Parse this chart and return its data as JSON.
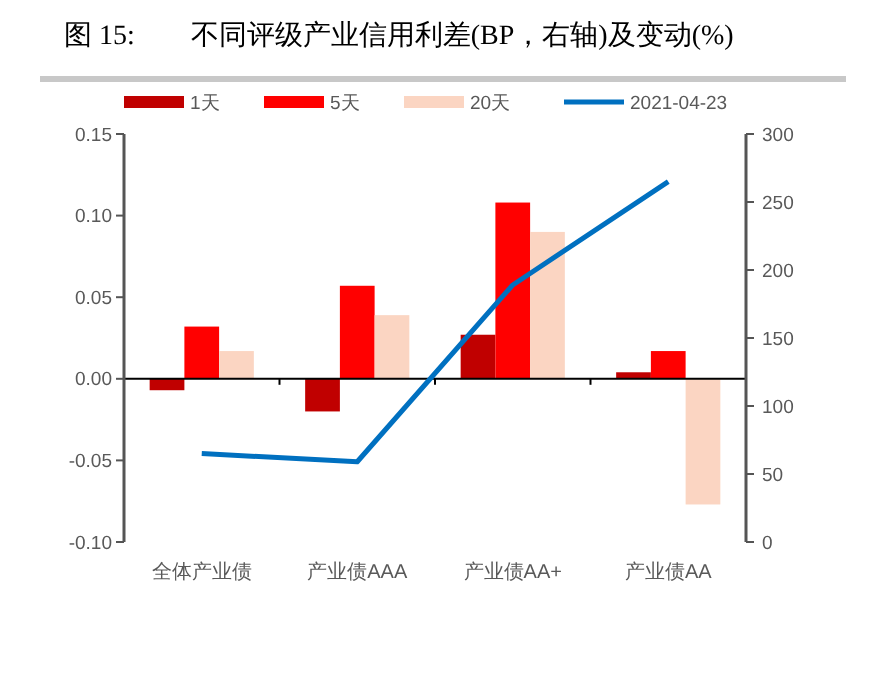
{
  "chart_data": {
    "type": "bar",
    "title": "图 15:　　不同评级产业信用利差(BP，右轴)及变动(%)",
    "categories": [
      "全体产业债",
      "产业债AAA",
      "产业债AA+",
      "产业债AA"
    ],
    "series": [
      {
        "name": "1天",
        "color": "#c00000",
        "values": [
          -0.007,
          -0.02,
          0.027,
          0.004
        ]
      },
      {
        "name": "5天",
        "color": "#ff0000",
        "values": [
          0.032,
          0.057,
          0.108,
          0.017
        ]
      },
      {
        "name": "20天",
        "color": "#fbd5c2",
        "values": [
          0.017,
          0.039,
          0.09,
          -0.077
        ]
      },
      {
        "name": "2021-04-23",
        "type": "line",
        "axis": "y2",
        "color": "#0070c0",
        "values": [
          65,
          59,
          189,
          265
        ]
      }
    ],
    "ylim": [
      -0.1,
      0.15
    ],
    "yticks": [
      {
        "value": -0.1,
        "label": "-0.10"
      },
      {
        "value": -0.05,
        "label": "-0.05"
      },
      {
        "value": 0,
        "label": "0.00"
      },
      {
        "value": 0.05,
        "label": "0.05"
      },
      {
        "value": 0.1,
        "label": "0.10"
      },
      {
        "value": 0.15,
        "label": "0.15"
      }
    ],
    "y2lim": [
      0,
      300
    ],
    "y2ticks": [
      0,
      50,
      100,
      150,
      200,
      250,
      300
    ],
    "legend": "top"
  }
}
